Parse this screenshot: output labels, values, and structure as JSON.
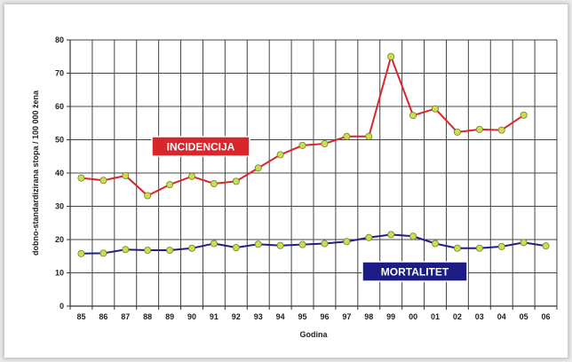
{
  "chart_data": {
    "type": "line",
    "title": "",
    "xlabel": "Godina",
    "ylabel": "dobno-standardizirana stopa / 100 000 žena",
    "categories": [
      "85",
      "86",
      "87",
      "88",
      "89",
      "90",
      "91",
      "92",
      "93",
      "94",
      "95",
      "96",
      "97",
      "98",
      "99",
      "00",
      "01",
      "02",
      "03",
      "04",
      "05",
      "06"
    ],
    "ylim": [
      0,
      80
    ],
    "yticks": [
      0,
      10,
      20,
      30,
      40,
      50,
      60,
      70,
      80
    ],
    "grid": true,
    "series": [
      {
        "name": "INCIDENCIJA",
        "color": "#d9262c",
        "values": [
          38.5,
          37.8,
          39.2,
          33.2,
          36.5,
          39.0,
          36.8,
          37.5,
          41.5,
          45.5,
          48.3,
          48.8,
          51.0,
          51.0,
          75.0,
          57.3,
          59.3,
          52.3,
          53.1,
          52.9,
          57.4,
          null
        ]
      },
      {
        "name": "MORTALITET",
        "color": "#1f1f8a",
        "values": [
          15.8,
          15.9,
          17.0,
          16.8,
          16.8,
          17.4,
          18.8,
          17.6,
          18.6,
          18.2,
          18.5,
          18.8,
          19.4,
          20.6,
          21.5,
          21.0,
          18.8,
          17.4,
          17.4,
          17.9,
          19.1,
          18.1
        ]
      }
    ],
    "marker_color": "#c8e050",
    "series_labels": [
      {
        "text": "INCIDENCIJA",
        "bg": "#d9262c"
      },
      {
        "text": "MORTALITET",
        "bg": "#1c1c86"
      }
    ]
  }
}
